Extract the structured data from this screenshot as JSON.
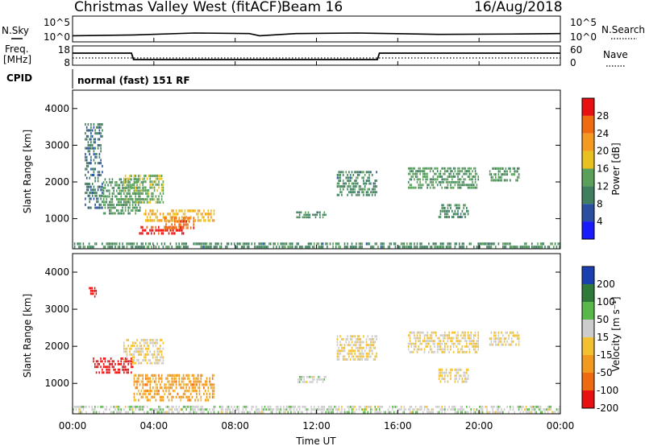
{
  "header": {
    "station": "Christmas Valley West (fitACF)",
    "beam": "Beam 16",
    "date": "16/Aug/2018"
  },
  "side_labels": {
    "nsky": "N.Sky",
    "nsearch": "N.Search",
    "freq": "Freq.",
    "freq_unit": "[MHz]",
    "nave": "Nave",
    "cpid": "CPID"
  },
  "noise_panel": {
    "ytick_top": "10^5",
    "ytick_bottom": "10^0"
  },
  "freq_panel": {
    "ytick_top": "18",
    "ytick_bottom": "8",
    "right_tick_top": "60",
    "right_tick_bottom": "0"
  },
  "cpid_panel": {
    "text": "normal (fast) 151 RF"
  },
  "time_axis": {
    "label": "Time UT",
    "ticks": [
      "00:00",
      "04:00",
      "08:00",
      "12:00",
      "16:00",
      "20:00",
      "00:00"
    ]
  },
  "power_panel": {
    "ylabel": "Slant Range [km]",
    "yticks": [
      "1000",
      "2000",
      "3000",
      "4000"
    ],
    "colorbar_label": "Power [dB]",
    "colorbar_ticks": [
      "4",
      "8",
      "12",
      "16",
      "20",
      "24",
      "28"
    ]
  },
  "velocity_panel": {
    "ylabel": "Slant Range [km]",
    "yticks": [
      "1000",
      "2000",
      "3000",
      "4000"
    ],
    "colorbar_label": "Velocity [m s⁻¹]",
    "colorbar_ticks": [
      "200",
      "100",
      "50",
      "15",
      "-15",
      "-50",
      "-100",
      "-200"
    ]
  },
  "colors": {
    "power_scale": [
      "#1a1aff",
      "#2a4fa0",
      "#3f7f5f",
      "#5aa05a",
      "#e8c020",
      "#f59a20",
      "#f06a10",
      "#e81010"
    ],
    "velocity_scale": [
      "#1a3fb0",
      "#2e7a38",
      "#59b84a",
      "#cccccc",
      "#f2c030",
      "#f29a20",
      "#ee6a10",
      "#e81010"
    ]
  },
  "chart_data": [
    {
      "type": "line",
      "title": "N.Sky / N.Search",
      "ylabel": "N.Sky",
      "x": [
        0,
        3,
        6,
        8.7,
        9.2,
        11,
        14,
        15,
        18,
        22,
        24
      ],
      "series": [
        {
          "name": "N.Sky",
          "values": [
            10,
            15,
            40,
            30,
            10,
            30,
            40,
            35,
            20,
            25,
            30
          ]
        }
      ]
    },
    {
      "type": "line",
      "title": "Freq.",
      "ylabel": "[MHz]",
      "ylim": [
        8,
        18
      ],
      "x": [
        0,
        2.9,
        3.0,
        15.0,
        15.1,
        24
      ],
      "series": [
        {
          "name": "Freq.",
          "values": [
            14.5,
            14.5,
            10.5,
            10.5,
            14.5,
            14.5
          ]
        }
      ]
    },
    {
      "type": "heatmap",
      "title": "",
      "xlabel": "Time UT",
      "ylabel": "Slant Range [km]",
      "xlim": [
        0,
        24
      ],
      "ylim": [
        180,
        4500
      ],
      "colorbar": {
        "label": "Power [dB]",
        "range": [
          0,
          30
        ]
      },
      "regions": [
        {
          "t": [
            0.6,
            1.5
          ],
          "range": [
            1250,
            3600
          ],
          "value": 8
        },
        {
          "t": [
            1.5,
            3.5
          ],
          "range": [
            1100,
            2100
          ],
          "value": 12
        },
        {
          "t": [
            2.5,
            4.5
          ],
          "range": [
            1400,
            2200
          ],
          "value": 14
        },
        {
          "t": [
            3.5,
            7.0
          ],
          "range": [
            900,
            1250
          ],
          "value": 18
        },
        {
          "t": [
            3.2,
            5.5
          ],
          "range": [
            550,
            800
          ],
          "value": 28
        },
        {
          "t": [
            4.5,
            6.0
          ],
          "range": [
            700,
            1050
          ],
          "value": 24
        },
        {
          "t": [
            0,
            24
          ],
          "range": [
            180,
            350
          ],
          "value": 10
        },
        {
          "t": [
            11.0,
            12.5
          ],
          "range": [
            1000,
            1200
          ],
          "value": 10
        },
        {
          "t": [
            13.0,
            15.0
          ],
          "range": [
            1600,
            2300
          ],
          "value": 10
        },
        {
          "t": [
            16.5,
            20.0
          ],
          "range": [
            1800,
            2400
          ],
          "value": 12
        },
        {
          "t": [
            18.0,
            19.5
          ],
          "range": [
            1000,
            1400
          ],
          "value": 10
        },
        {
          "t": [
            20.5,
            22.0
          ],
          "range": [
            2000,
            2400
          ],
          "value": 12
        }
      ]
    },
    {
      "type": "heatmap",
      "title": "",
      "xlabel": "Time UT",
      "ylabel": "Slant Range [km]",
      "xlim": [
        0,
        24
      ],
      "ylim": [
        180,
        4500
      ],
      "colorbar": {
        "label": "Velocity [m s⁻¹]",
        "range": [
          -200,
          200
        ]
      },
      "regions": [
        {
          "t": [
            0.8,
            1.2
          ],
          "range": [
            3300,
            3600
          ],
          "value": -200
        },
        {
          "t": [
            1.0,
            3.0
          ],
          "range": [
            1250,
            1700
          ],
          "value": -200
        },
        {
          "t": [
            2.5,
            4.5
          ],
          "range": [
            1500,
            2200
          ],
          "value": 0
        },
        {
          "t": [
            3.0,
            7.0
          ],
          "range": [
            500,
            1250
          ],
          "value": -70
        },
        {
          "t": [
            0,
            24
          ],
          "range": [
            180,
            400
          ],
          "value": 30
        },
        {
          "t": [
            11.0,
            12.5
          ],
          "range": [
            1000,
            1200
          ],
          "value": 30
        },
        {
          "t": [
            13.0,
            15.0
          ],
          "range": [
            1600,
            2300
          ],
          "value": 0
        },
        {
          "t": [
            16.5,
            20.0
          ],
          "range": [
            1800,
            2400
          ],
          "value": 0
        },
        {
          "t": [
            18.0,
            19.5
          ],
          "range": [
            1000,
            1400
          ],
          "value": 0
        },
        {
          "t": [
            20.5,
            22.0
          ],
          "range": [
            2000,
            2400
          ],
          "value": 0
        }
      ]
    }
  ]
}
